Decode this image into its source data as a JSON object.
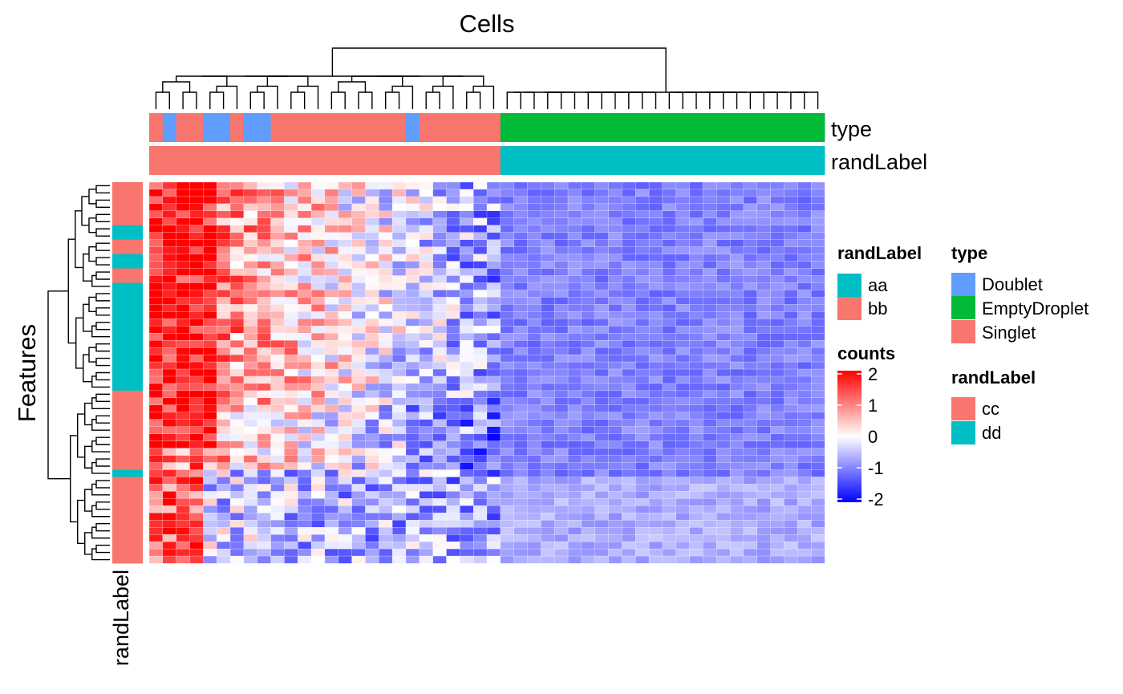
{
  "chart_data": {
    "type": "heatmap",
    "title": "Cells",
    "xlabel": "Cells",
    "ylabel": "Features",
    "n_columns": 50,
    "n_rows": 53,
    "top_annotations": [
      {
        "name": "type",
        "values": [
          "Singlet",
          "Doublet",
          "Singlet",
          "Singlet",
          "Doublet",
          "Doublet",
          "Singlet",
          "Doublet",
          "Doublet",
          "Singlet",
          "Singlet",
          "Singlet",
          "Singlet",
          "Singlet",
          "Singlet",
          "Singlet",
          "Singlet",
          "Singlet",
          "Singlet",
          "Doublet",
          "Singlet",
          "Singlet",
          "Singlet",
          "Singlet",
          "Singlet",
          "Singlet",
          "EmptyDroplet",
          "EmptyDroplet",
          "EmptyDroplet",
          "EmptyDroplet",
          "EmptyDroplet",
          "EmptyDroplet",
          "EmptyDroplet",
          "EmptyDroplet",
          "EmptyDroplet",
          "EmptyDroplet",
          "EmptyDroplet",
          "EmptyDroplet",
          "EmptyDroplet",
          "EmptyDroplet",
          "EmptyDroplet",
          "EmptyDroplet",
          "EmptyDroplet",
          "EmptyDroplet",
          "EmptyDroplet",
          "EmptyDroplet",
          "EmptyDroplet",
          "EmptyDroplet",
          "EmptyDroplet",
          "EmptyDroplet"
        ]
      },
      {
        "name": "randLabel",
        "values": [
          "cc",
          "cc",
          "cc",
          "cc",
          "cc",
          "cc",
          "cc",
          "cc",
          "cc",
          "cc",
          "cc",
          "cc",
          "cc",
          "cc",
          "cc",
          "cc",
          "cc",
          "cc",
          "cc",
          "cc",
          "cc",
          "cc",
          "cc",
          "cc",
          "cc",
          "cc",
          "dd",
          "dd",
          "dd",
          "dd",
          "dd",
          "dd",
          "dd",
          "dd",
          "dd",
          "dd",
          "dd",
          "dd",
          "dd",
          "dd",
          "dd",
          "dd",
          "dd",
          "dd",
          "dd",
          "dd",
          "dd",
          "dd",
          "dd",
          "dd"
        ]
      }
    ],
    "row_annotation": {
      "name": "randLabel",
      "values": [
        "bb",
        "bb",
        "bb",
        "bb",
        "bb",
        "bb",
        "aa",
        "aa",
        "bb",
        "bb",
        "aa",
        "aa",
        "bb",
        "bb",
        "aa",
        "aa",
        "aa",
        "aa",
        "aa",
        "aa",
        "aa",
        "aa",
        "aa",
        "aa",
        "aa",
        "aa",
        "aa",
        "aa",
        "aa",
        "bb",
        "bb",
        "bb",
        "bb",
        "bb",
        "bb",
        "bb",
        "bb",
        "bb",
        "bb",
        "bb",
        "aa",
        "bb",
        "bb",
        "bb",
        "bb",
        "bb",
        "bb",
        "bb",
        "bb",
        "bb",
        "bb",
        "bb",
        "bb"
      ]
    },
    "legends": {
      "randLabel_rows": {
        "title": "randLabel",
        "items": [
          {
            "label": "aa",
            "color": "#00BFC4"
          },
          {
            "label": "bb",
            "color": "#F8766D"
          }
        ]
      },
      "type": {
        "title": "type",
        "items": [
          {
            "label": "Doublet",
            "color": "#619CFF"
          },
          {
            "label": "EmptyDroplet",
            "color": "#00BA38"
          },
          {
            "label": "Singlet",
            "color": "#F8766D"
          }
        ]
      },
      "randLabel_cols": {
        "title": "randLabel",
        "items": [
          {
            "label": "cc",
            "color": "#F8766D"
          },
          {
            "label": "dd",
            "color": "#00BFC4"
          }
        ]
      },
      "counts": {
        "title": "counts",
        "ticks": [
          "2",
          "1",
          "0",
          "-1",
          "-2"
        ],
        "range": [
          -2,
          2
        ]
      }
    },
    "color_scale": {
      "low": "#0000FF",
      "mid": "#FFFFFF",
      "high": "#FF0000"
    },
    "row_annotation_label": "randLabel"
  }
}
